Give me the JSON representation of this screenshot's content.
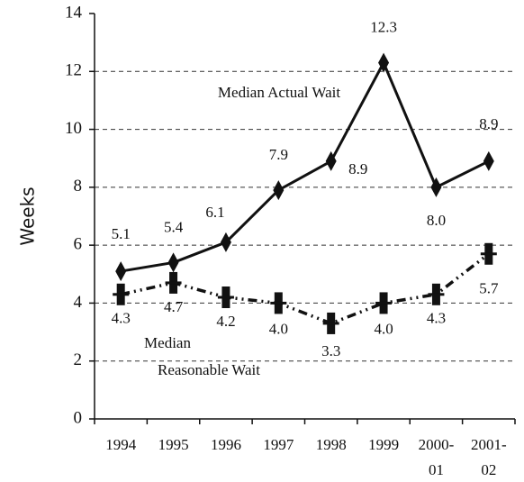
{
  "chart_data": {
    "type": "line",
    "y_label": "Weeks",
    "annotations": [
      "Median Actual Wait",
      "Median",
      "Reasonable Wait"
    ],
    "categories": [
      "1994",
      "1995",
      "1996",
      "1997",
      "1998",
      "1999",
      "2000-01",
      "2001-02"
    ],
    "series": [
      {
        "name": "Median Actual Wait",
        "color": "#111111",
        "marker": "diamond",
        "line": "solid",
        "values": [
          5.1,
          5.4,
          6.1,
          7.9,
          8.9,
          12.3,
          8.0,
          8.9
        ],
        "value_labels": [
          "5.1",
          "5.4",
          "6.1",
          "7.9",
          "8.9",
          "12.3",
          "8.0",
          "8.9"
        ]
      },
      {
        "name": "Median Reasonable Wait",
        "color": "#111111",
        "marker": "bar",
        "line": "dashdot",
        "values": [
          4.3,
          4.7,
          4.2,
          4.0,
          3.3,
          4.0,
          4.3,
          5.7
        ],
        "value_labels": [
          "4.3",
          "4.7",
          "4.2",
          "4.0",
          "3.3",
          "4.0",
          "4.3",
          "5.7"
        ]
      }
    ],
    "ylim": [
      0,
      14
    ],
    "yticks": [
      0,
      2,
      4,
      6,
      8,
      10,
      12,
      14
    ],
    "grid": true
  }
}
